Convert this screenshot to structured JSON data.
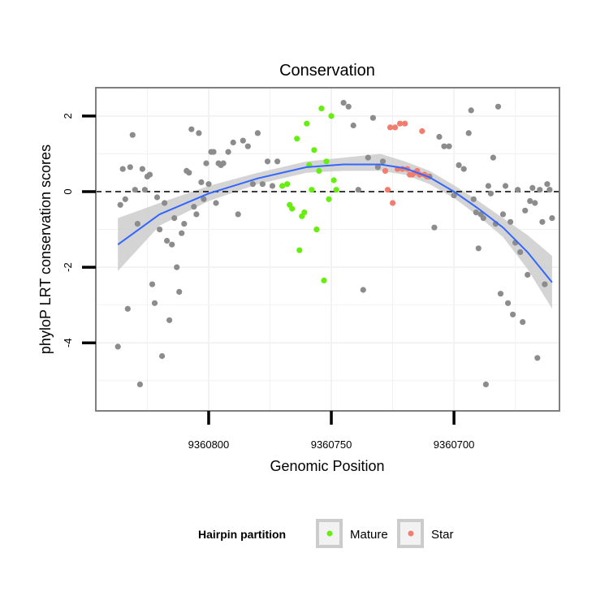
{
  "chart_data": {
    "type": "scatter",
    "title": "Conservation",
    "xlabel": "Genomic Position",
    "ylabel": "phyloP LRT conservation scores",
    "x_reversed": true,
    "xlim": [
      9360846,
      9360657
    ],
    "ylim": [
      -5.8,
      2.75
    ],
    "x_ticks": [
      9360800,
      9360750,
      9360700
    ],
    "y_ticks": [
      2,
      0,
      -2,
      -4
    ],
    "reference_line": {
      "y": 0,
      "style": "dashed"
    },
    "grid": true,
    "legend": {
      "title": "Hairpin partition",
      "placement": "bottom",
      "entries": [
        {
          "label": "Mature",
          "color": "#66ee11"
        },
        {
          "label": "Star",
          "color": "#f07d6e"
        }
      ]
    },
    "colors": {
      "other": "#8c8c8c",
      "mature": "#66ee11",
      "star": "#f07d6e",
      "smooth_line": "#3366ff",
      "ribbon": "#cccccc",
      "panel_border": "#7f7f7f",
      "grid": "#f2f2f2"
    },
    "smooth": {
      "x": [
        9360837,
        9360820,
        9360800,
        9360780,
        9360760,
        9360745,
        9360730,
        9360720,
        9360710,
        9360700,
        9360690,
        9360680,
        9360670,
        9360660
      ],
      "y": [
        -1.4,
        -0.6,
        -0.05,
        0.35,
        0.65,
        0.72,
        0.72,
        0.62,
        0.38,
        0.0,
        -0.45,
        -0.95,
        -1.6,
        -2.4
      ],
      "lower": [
        -2.1,
        -0.9,
        -0.25,
        0.2,
        0.5,
        0.55,
        0.55,
        0.45,
        0.2,
        -0.17,
        -0.65,
        -1.2,
        -2.05,
        -3.1
      ],
      "upper": [
        -0.7,
        -0.3,
        0.15,
        0.5,
        0.8,
        0.9,
        1.0,
        0.8,
        0.55,
        0.17,
        -0.25,
        -0.7,
        -1.15,
        -1.7
      ]
    },
    "series": [
      {
        "name": "Mature",
        "x": [
          9360770,
          9360768,
          9360767,
          9360766,
          9360764,
          9360763,
          9360762,
          9360761,
          9360760,
          9360759,
          9360758,
          9360757,
          9360756,
          9360755,
          9360754,
          9360753,
          9360752,
          9360751,
          9360750,
          9360749,
          9360748
        ],
        "y": [
          0.15,
          0.2,
          -0.35,
          -0.45,
          1.4,
          -1.55,
          -0.65,
          -0.55,
          1.8,
          0.7,
          0.05,
          1.1,
          -1.0,
          0.55,
          2.2,
          -2.35,
          0.8,
          -0.2,
          2.0,
          0.3,
          0.05
        ]
      },
      {
        "name": "Star",
        "x": [
          9360728,
          9360727,
          9360726,
          9360725,
          9360724,
          9360723,
          9360722,
          9360721,
          9360720,
          9360719,
          9360718,
          9360717,
          9360716,
          9360715,
          9360714,
          9360713,
          9360712,
          9360711
        ],
        "y": [
          0.55,
          0.05,
          1.7,
          -0.3,
          1.7,
          0.6,
          1.8,
          0.6,
          1.8,
          0.6,
          0.45,
          0.45,
          0.5,
          0.55,
          0.45,
          1.6,
          0.45,
          0.4
        ]
      },
      {
        "x": [
          9360837,
          9360836,
          9360835,
          9360834,
          9360833,
          9360832,
          9360831,
          9360830,
          9360829,
          9360828,
          9360827,
          9360826,
          9360825,
          9360824,
          9360823,
          9360822,
          9360821,
          9360820,
          9360819,
          9360818,
          9360817,
          9360816,
          9360815,
          9360814,
          9360813,
          9360812,
          9360811,
          9360810,
          9360809,
          9360808,
          9360807,
          9360806,
          9360805,
          9360804,
          9360803,
          9360802,
          9360801,
          9360800,
          9360799,
          9360798,
          9360797,
          9360796,
          9360795,
          9360794,
          9360792,
          9360790,
          9360788,
          9360786,
          9360784,
          9360782,
          9360780,
          9360778,
          9360776,
          9360774,
          9360772,
          9360745,
          9360743,
          9360741,
          9360739,
          9360737,
          9360735,
          9360733,
          9360731,
          9360729,
          9360710,
          9360708,
          9360706,
          9360704,
          9360702,
          9360700,
          9360698,
          9360696,
          9360694,
          9360693,
          9360692,
          9360691,
          9360690,
          9360689,
          9360688,
          9360687,
          9360686,
          9360685,
          9360684,
          9360683,
          9360682,
          9360681,
          9360680,
          9360679,
          9360678,
          9360677,
          9360676,
          9360675,
          9360674,
          9360673,
          9360672,
          9360671,
          9360670,
          9360669,
          9360668,
          9360667,
          9360666,
          9360665,
          9360664,
          9360663,
          9360662,
          9360661,
          9360660
        ],
        "y": [
          -4.1,
          -0.35,
          0.6,
          -0.2,
          -3.1,
          0.65,
          1.5,
          0.05,
          -0.85,
          -5.1,
          0.6,
          0.05,
          0.4,
          0.45,
          -2.45,
          -2.95,
          -0.15,
          -1.0,
          -4.35,
          -0.3,
          -1.3,
          -3.4,
          -1.4,
          -0.7,
          -2.0,
          -2.65,
          -1.1,
          -0.85,
          0.55,
          0.5,
          1.65,
          -0.4,
          -0.6,
          1.55,
          0.25,
          -0.2,
          0.75,
          0.2,
          1.05,
          1.05,
          -0.3,
          0.75,
          0.7,
          0.75,
          1.05,
          1.3,
          -0.6,
          1.35,
          1.2,
          0.2,
          1.55,
          0.2,
          0.8,
          0.15,
          0.8,
          2.35,
          2.25,
          1.75,
          0.05,
          -2.6,
          0.9,
          1.95,
          0.65,
          0.8,
          0.4,
          -0.95,
          1.45,
          1.2,
          1.2,
          -0.1,
          0.7,
          0.6,
          1.55,
          2.15,
          -0.2,
          -0.55,
          -1.5,
          -0.6,
          -0.7,
          -5.1,
          0.15,
          -0.05,
          0.9,
          -0.85,
          2.25,
          -2.7,
          -0.6,
          0.15,
          -2.95,
          -0.8,
          -3.25,
          -1.35,
          0.05,
          -1.6,
          -3.45,
          -0.5,
          -2.2,
          -0.25,
          0.1,
          -0.3,
          -4.4,
          0.05,
          -0.8,
          -2.45,
          0.2,
          0.05,
          -0.7
        ]
      }
    ]
  }
}
